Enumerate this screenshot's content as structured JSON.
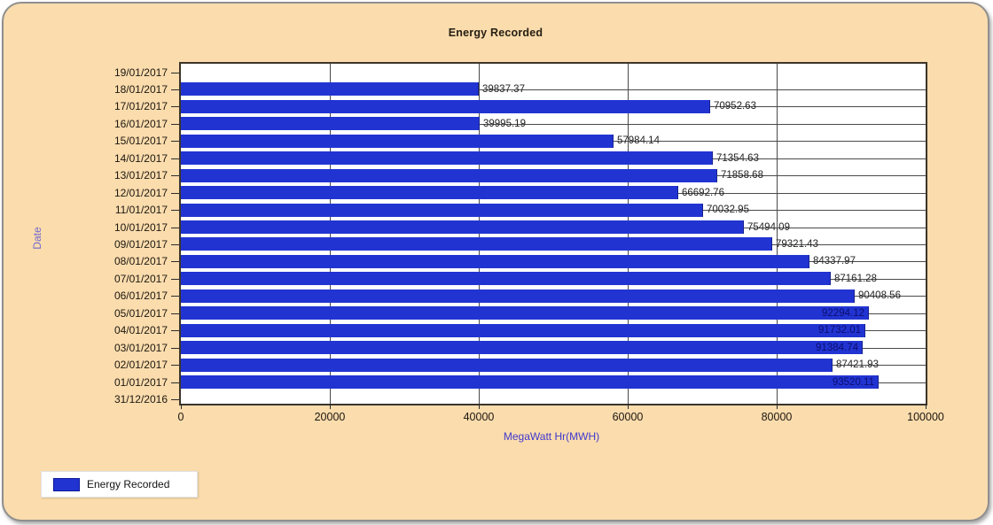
{
  "title": "Energy Recorded",
  "colors": {
    "panel_background": "#fbdcad",
    "plot_background": "#ffffff",
    "bar": "#2134d2",
    "grid": "#4a4a4a",
    "axis_text": "#1c1710",
    "x_axis_title": "#4038cf",
    "y_axis_title": "#7168cf",
    "inside_bar_label": "#0d0d70"
  },
  "legend": {
    "label": "Energy Recorded",
    "position": "bottom-left"
  },
  "chart_data": {
    "type": "bar",
    "orientation": "horizontal",
    "title": "Energy Recorded",
    "xlabel": "MegaWatt Hr(MWH)",
    "ylabel": "Date",
    "xlim": [
      0,
      100000
    ],
    "x_tick_labels": [
      "0",
      "20000",
      "40000",
      "60000",
      "80000",
      "100000"
    ],
    "x_tick_values": [
      0,
      20000,
      40000,
      60000,
      80000,
      100000
    ],
    "y_tick_labels": [
      "19/01/2017",
      "18/01/2017",
      "17/01/2017",
      "16/01/2017",
      "15/01/2017",
      "14/01/2017",
      "13/01/2017",
      "12/01/2017",
      "11/01/2017",
      "10/01/2017",
      "09/01/2017",
      "08/01/2017",
      "07/01/2017",
      "06/01/2017",
      "05/01/2017",
      "04/01/2017",
      "03/01/2017",
      "02/01/2017",
      "01/01/2017",
      "31/12/2016"
    ],
    "grid": true,
    "legend_entries": [
      "Energy Recorded"
    ],
    "series": [
      {
        "name": "Energy Recorded",
        "points": [
          {
            "date": "18/01/2017",
            "value": 39837.37,
            "label": "39837.37",
            "label_inside": false
          },
          {
            "date": "17/01/2017",
            "value": 70952.63,
            "label": "70952.63",
            "label_inside": false
          },
          {
            "date": "16/01/2017",
            "value": 39995.19,
            "label": "39995.19",
            "label_inside": false
          },
          {
            "date": "15/01/2017",
            "value": 57984.14,
            "label": "57984.14",
            "label_inside": false
          },
          {
            "date": "14/01/2017",
            "value": 71354.63,
            "label": "71354.63",
            "label_inside": false
          },
          {
            "date": "13/01/2017",
            "value": 71858.68,
            "label": "71858.68",
            "label_inside": false
          },
          {
            "date": "12/01/2017",
            "value": 66692.76,
            "label": "66692.76",
            "label_inside": false
          },
          {
            "date": "11/01/2017",
            "value": 70032.95,
            "label": "70032.95",
            "label_inside": false
          },
          {
            "date": "10/01/2017",
            "value": 75494.09,
            "label": "75494.09",
            "label_inside": false
          },
          {
            "date": "09/01/2017",
            "value": 79321.43,
            "label": "79321.43",
            "label_inside": false
          },
          {
            "date": "08/01/2017",
            "value": 84337.97,
            "label": "84337.97",
            "label_inside": false
          },
          {
            "date": "07/01/2017",
            "value": 87161.28,
            "label": "87161.28",
            "label_inside": false
          },
          {
            "date": "06/01/2017",
            "value": 90408.56,
            "label": "90408.56",
            "label_inside": false
          },
          {
            "date": "05/01/2017",
            "value": 92294.12,
            "label": "92294.12",
            "label_inside": true
          },
          {
            "date": "04/01/2017",
            "value": 91732.01,
            "label": "91732.01",
            "label_inside": true
          },
          {
            "date": "03/01/2017",
            "value": 91384.74,
            "label": "91384.74",
            "label_inside": true
          },
          {
            "date": "02/01/2017",
            "value": 87421.93,
            "label": "87421.93",
            "label_inside": false
          },
          {
            "date": "01/01/2017",
            "value": 93520.11,
            "label": "93520.11",
            "label_inside": true
          }
        ]
      }
    ]
  }
}
